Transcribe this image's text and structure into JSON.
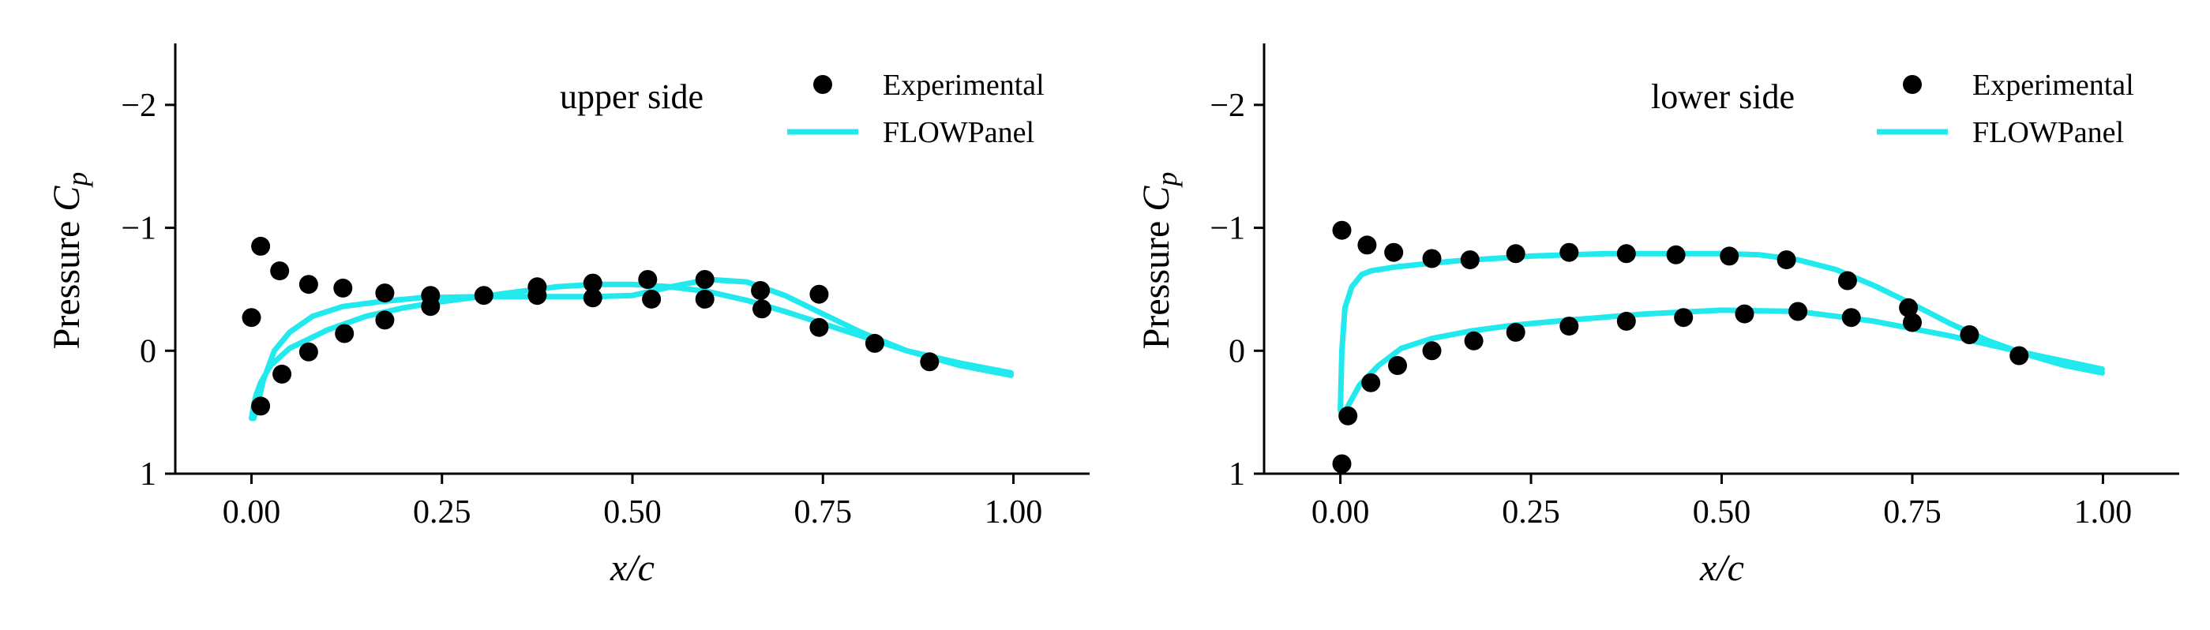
{
  "chart_data": [
    {
      "type": "scatter+line",
      "title": "upper side",
      "xlabel": "x/c",
      "ylabel": "Pressure C_p",
      "ylabel_prefix": "Pressure ",
      "ylabel_symbol": "C",
      "ylabel_subscript": "p",
      "xlim": [
        -0.1,
        1.1
      ],
      "ylim": [
        1.0,
        -2.5
      ],
      "y_inverted": true,
      "xticks": [
        0.0,
        0.25,
        0.5,
        0.75,
        1.0
      ],
      "xtick_labels": [
        "0.00",
        "0.25",
        "0.50",
        "0.75",
        "1.00"
      ],
      "yticks": [
        -2,
        -1,
        0,
        1
      ],
      "ytick_labels": [
        "−2",
        "−1",
        "0",
        "1"
      ],
      "legend": {
        "placement": "top-right",
        "entries": [
          "Experimental",
          "FLOWPanel"
        ]
      },
      "grid": false,
      "colors": {
        "experimental": "#000000",
        "flowpanel": "#22e9ee"
      },
      "series": [
        {
          "name": "Experimental",
          "style": "markers",
          "x": [
            0.0,
            0.012,
            0.037,
            0.075,
            0.12,
            0.175,
            0.235,
            0.305,
            0.375,
            0.448,
            0.52,
            0.595,
            0.668,
            0.745,
            0.818,
            0.89,
            0.012,
            0.04,
            0.075,
            0.122,
            0.175,
            0.235,
            0.375,
            0.448,
            0.525,
            0.595,
            0.67,
            0.745
          ],
          "y": [
            -0.27,
            -0.85,
            -0.65,
            -0.54,
            -0.51,
            -0.47,
            -0.45,
            -0.45,
            -0.52,
            -0.55,
            -0.58,
            -0.58,
            -0.49,
            -0.46,
            -0.06,
            0.09,
            0.45,
            0.19,
            0.01,
            -0.14,
            -0.25,
            -0.36,
            -0.45,
            -0.43,
            -0.42,
            -0.42,
            -0.34,
            -0.19
          ]
        },
        {
          "name": "FLOWPanel",
          "style": "line",
          "x": [
            0.997,
            0.93,
            0.86,
            0.8,
            0.75,
            0.7,
            0.65,
            0.6,
            0.55,
            0.5,
            0.45,
            0.4,
            0.35,
            0.3,
            0.25,
            0.2,
            0.15,
            0.1,
            0.05,
            0.025,
            0.012,
            0.006,
            0.003,
            0.0,
            0.003,
            0.008,
            0.015,
            0.03,
            0.05,
            0.08,
            0.12,
            0.17,
            0.22,
            0.3,
            0.35,
            0.4,
            0.45,
            0.5,
            0.55,
            0.6,
            0.65,
            0.7,
            0.75,
            0.8,
            0.86,
            0.93,
            0.997
          ],
          "y": [
            0.18,
            0.1,
            0.0,
            -0.12,
            -0.22,
            -0.32,
            -0.41,
            -0.48,
            -0.52,
            -0.54,
            -0.54,
            -0.52,
            -0.48,
            -0.44,
            -0.4,
            -0.35,
            -0.28,
            -0.17,
            -0.02,
            0.12,
            0.26,
            0.36,
            0.44,
            0.55,
            0.55,
            0.45,
            0.25,
            0.0,
            -0.15,
            -0.28,
            -0.36,
            -0.4,
            -0.43,
            -0.44,
            -0.44,
            -0.44,
            -0.44,
            -0.45,
            -0.52,
            -0.58,
            -0.56,
            -0.45,
            -0.3,
            -0.15,
            0.0,
            0.12,
            0.2
          ]
        }
      ]
    },
    {
      "type": "scatter+line",
      "title": "lower side",
      "xlabel": "x/c",
      "ylabel": "Pressure C_p",
      "ylabel_prefix": "Pressure ",
      "ylabel_symbol": "C",
      "ylabel_subscript": "p",
      "xlim": [
        -0.1,
        1.1
      ],
      "ylim": [
        1.0,
        -2.5
      ],
      "y_inverted": true,
      "xticks": [
        0.0,
        0.25,
        0.5,
        0.75,
        1.0
      ],
      "xtick_labels": [
        "0.00",
        "0.25",
        "0.50",
        "0.75",
        "1.00"
      ],
      "yticks": [
        -2,
        -1,
        0,
        1
      ],
      "ytick_labels": [
        "−2",
        "−1",
        "0",
        "1"
      ],
      "legend": {
        "placement": "top-right",
        "entries": [
          "Experimental",
          "FLOWPanel"
        ]
      },
      "grid": false,
      "colors": {
        "experimental": "#000000",
        "flowpanel": "#22e9ee"
      },
      "series": [
        {
          "name": "Experimental",
          "style": "markers",
          "x": [
            0.002,
            0.035,
            0.07,
            0.12,
            0.17,
            0.23,
            0.3,
            0.375,
            0.44,
            0.51,
            0.585,
            0.665,
            0.745,
            0.002,
            0.01,
            0.04,
            0.075,
            0.12,
            0.175,
            0.23,
            0.3,
            0.375,
            0.45,
            0.53,
            0.6,
            0.67,
            0.75,
            0.825,
            0.89
          ],
          "y": [
            -0.98,
            -0.86,
            -0.8,
            -0.75,
            -0.74,
            -0.79,
            -0.8,
            -0.79,
            -0.78,
            -0.77,
            -0.74,
            -0.57,
            -0.35,
            0.92,
            0.53,
            0.26,
            0.12,
            0.0,
            -0.08,
            -0.15,
            -0.2,
            -0.24,
            -0.27,
            -0.3,
            -0.32,
            -0.27,
            -0.23,
            -0.13,
            0.04
          ]
        },
        {
          "name": "FLOWPanel",
          "style": "line",
          "x": [
            0.999,
            0.95,
            0.9,
            0.85,
            0.8,
            0.75,
            0.7,
            0.65,
            0.6,
            0.55,
            0.5,
            0.45,
            0.4,
            0.35,
            0.3,
            0.25,
            0.2,
            0.15,
            0.1,
            0.07,
            0.04,
            0.028,
            0.015,
            0.006,
            0.002,
            0.0,
            0.003,
            0.01,
            0.025,
            0.05,
            0.08,
            0.12,
            0.17,
            0.23,
            0.3,
            0.4,
            0.5,
            0.6,
            0.7,
            0.8,
            0.9,
            0.999
          ],
          "y": [
            0.18,
            0.12,
            0.03,
            -0.08,
            -0.22,
            -0.38,
            -0.53,
            -0.66,
            -0.74,
            -0.78,
            -0.79,
            -0.79,
            -0.79,
            -0.79,
            -0.78,
            -0.77,
            -0.75,
            -0.73,
            -0.7,
            -0.68,
            -0.65,
            -0.62,
            -0.52,
            -0.35,
            0.0,
            0.48,
            0.55,
            0.45,
            0.28,
            0.12,
            -0.02,
            -0.1,
            -0.16,
            -0.21,
            -0.25,
            -0.3,
            -0.33,
            -0.32,
            -0.24,
            -0.12,
            0.02,
            0.15
          ]
        }
      ]
    }
  ]
}
